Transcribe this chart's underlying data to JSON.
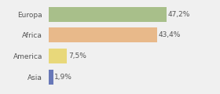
{
  "categories": [
    "Europa",
    "Africa",
    "America",
    "Asia"
  ],
  "values": [
    47.2,
    43.4,
    7.5,
    1.9
  ],
  "labels": [
    "47,2%",
    "43,4%",
    "7,5%",
    "1,9%"
  ],
  "colors": [
    "#a8bf8a",
    "#e8b98a",
    "#e8d87a",
    "#6878b8"
  ],
  "background_color": "#f0f0f0",
  "xlim": [
    0,
    58
  ],
  "bar_height": 0.72,
  "text_fontsize": 6.5,
  "label_fontsize": 6.5
}
